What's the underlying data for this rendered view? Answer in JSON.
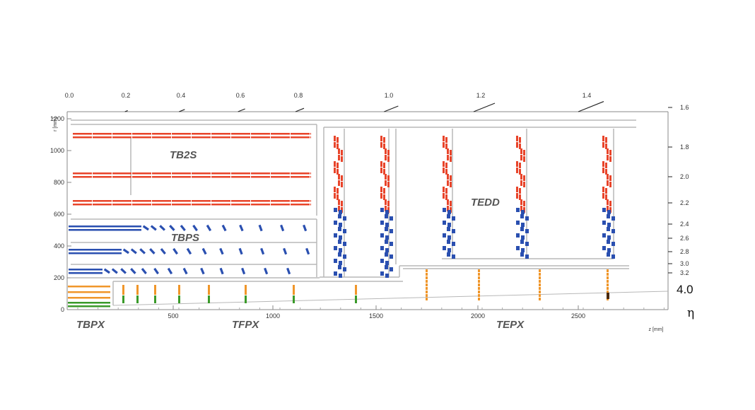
{
  "axes": {
    "y_title": "r [mm]",
    "x_title": "z [mm]",
    "y_ticks": [
      "0",
      "200",
      "400",
      "600",
      "800",
      "1000",
      "1200"
    ],
    "x_ticks": [
      "500",
      "1000",
      "1500",
      "2000",
      "2500"
    ],
    "top_eta_ticks": [
      "0.0",
      "0.2",
      "0.4",
      "0.6",
      "0.8",
      "1.0",
      "1.2",
      "1.4"
    ],
    "right_eta_ticks": [
      "1.6",
      "1.8",
      "2.0",
      "2.2",
      "2.4",
      "2.6",
      "2.8",
      "3.0",
      "3.2"
    ],
    "eta_max_label": "4.0",
    "eta_symbol": "η"
  },
  "regions": {
    "tb2s": "TB2S",
    "tbps": "TBPS",
    "tedd": "TEDD",
    "tbpx": "TBPX",
    "tfpx": "TFPX",
    "tepx": "TEPX"
  },
  "colors": {
    "tb2s": "#e8442a",
    "tedd_outer": "#e8442a",
    "tbps": "#2a4fb0",
    "tedd_inner": "#2a4fb0",
    "pixel_barrel": "#f0962a",
    "pixel_inner": "#3a9a2a",
    "support": "#b8b8b8"
  }
}
